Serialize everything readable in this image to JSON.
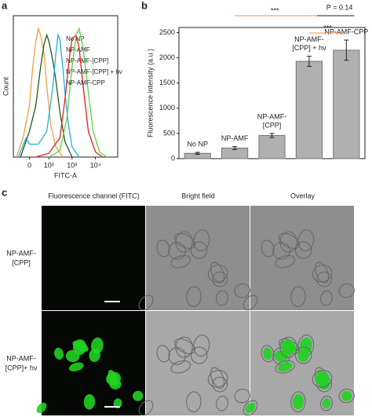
{
  "panels": [
    "a",
    "b",
    "c"
  ],
  "chart_data": [
    {
      "type": "line",
      "xscale": "biexponential",
      "xlabel": "FITC-A",
      "ylabel": "Count",
      "xlim": [
        -70,
        90000
      ],
      "ylim": [
        0,
        110
      ],
      "xticks": [
        {
          "value": 0,
          "label": "0"
        },
        {
          "value": 100,
          "label": "10²"
        },
        {
          "value": 1000,
          "label": "10³"
        },
        {
          "value": 10000,
          "label": "10⁴"
        }
      ],
      "series": [
        {
          "name": "No NP",
          "color": "#f0a040",
          "x": [
            -50,
            -20,
            0,
            10,
            20,
            30,
            40,
            60,
            80,
            120,
            200,
            400
          ],
          "values": [
            0,
            15,
            40,
            70,
            90,
            100,
            95,
            80,
            55,
            25,
            8,
            0
          ]
        },
        {
          "name": "NP-AMF",
          "color": "#1f5a1f",
          "x": [
            -30,
            0,
            20,
            40,
            60,
            80,
            100,
            150,
            200,
            300,
            500,
            1000
          ],
          "values": [
            0,
            20,
            40,
            70,
            88,
            95,
            90,
            75,
            60,
            35,
            12,
            0
          ]
        },
        {
          "name": "NP-AMF-[CPP]",
          "color": "#20b0e0",
          "x": [
            -40,
            -10,
            0,
            30,
            80,
            150,
            200,
            250,
            300,
            400,
            500,
            700,
            1000,
            2000
          ],
          "values": [
            0,
            15,
            10,
            10,
            20,
            55,
            80,
            95,
            92,
            70,
            50,
            25,
            8,
            0
          ]
        },
        {
          "name": "NP-AMF-[CPP] + hν",
          "color": "#e02020",
          "x": [
            20,
            100,
            300,
            500,
            800,
            1000,
            1500,
            2000,
            3000,
            5000,
            10000,
            20000
          ],
          "values": [
            0,
            3,
            15,
            45,
            80,
            92,
            95,
            85,
            55,
            20,
            4,
            0
          ]
        },
        {
          "name": "NP-AMF-CPP",
          "color": "#60d040",
          "x": [
            100,
            300,
            600,
            1000,
            1500,
            2000,
            3000,
            5000,
            8000,
            15000,
            30000
          ],
          "values": [
            0,
            5,
            30,
            70,
            95,
            100,
            85,
            50,
            20,
            4,
            0
          ]
        }
      ]
    },
    {
      "type": "bar",
      "ylabel": "Fluorescence intensity (a.u.)",
      "color": "#b0b0b0",
      "categories": [
        [
          "No NP"
        ],
        [
          "NP-AMF"
        ],
        [
          "NP-AMF-",
          "[CPP]"
        ],
        [
          "NP-AMF-",
          "[CPP] + hν"
        ],
        [
          "NP-AMF-CPP"
        ]
      ],
      "label_colors": [
        "#e09030",
        "#1f5a1f",
        "#20a0e0",
        "#e02020",
        "#50c040"
      ],
      "values": [
        105,
        210,
        460,
        1930,
        2150
      ],
      "errors": [
        20,
        30,
        40,
        100,
        200
      ],
      "ylim": [
        0,
        2600
      ],
      "yticks": [
        0,
        500,
        1000,
        1500,
        2000,
        2500
      ],
      "annotations": [
        "***",
        "***",
        "P = 0.14"
      ]
    },
    {
      "type": "image-grid",
      "columns": [
        "Fluorescence channel (FITC)",
        "Bright field",
        "Overlay"
      ],
      "rows": [
        [
          "NP-AMF-",
          "[CPP]"
        ],
        [
          "NP-AMF-",
          "[CPP]+ hν"
        ]
      ]
    }
  ]
}
